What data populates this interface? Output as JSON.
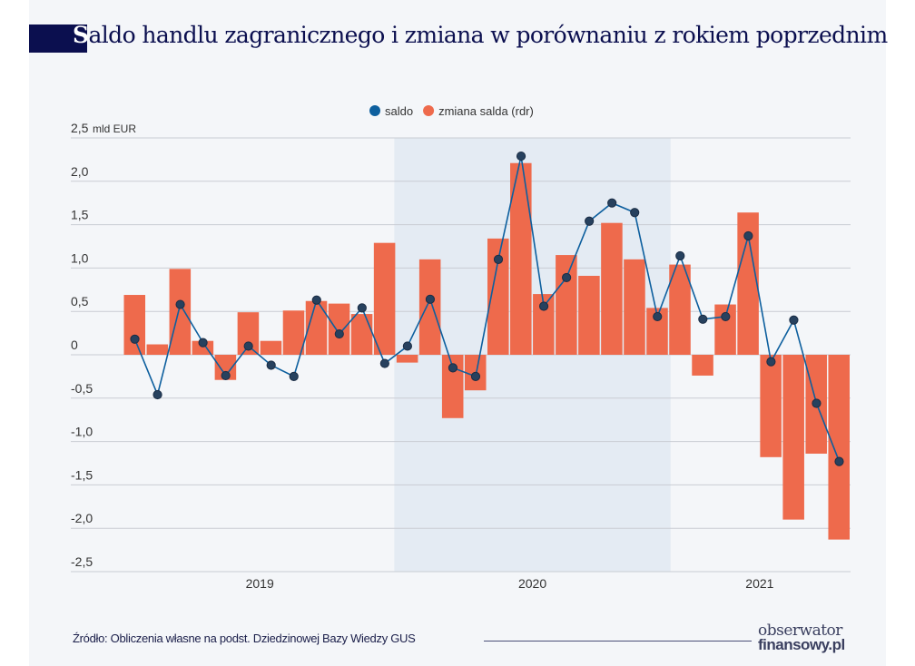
{
  "title": {
    "first_letter": "S",
    "rest": "aldo handlu zagranicznego i zmiana w porównaniu z rokiem poprzednim"
  },
  "source": "Źródło: Obliczenia własne na podst. Dziedzinowej Bazy Wiedzy GUS",
  "logo": {
    "line1": "obserwator",
    "line2": "finansowy.pl"
  },
  "chart_data": {
    "type": "bar+line",
    "ylabel": "mld EUR",
    "ylim": [
      -2.5,
      2.5
    ],
    "yticks": [
      "2,5",
      "2,0",
      "1,5",
      "1,0",
      "0,5",
      "0",
      "-0,5",
      "-1,0",
      "-1,5",
      "-2,0",
      "-2,5"
    ],
    "x_group_labels": [
      "2019",
      "2020",
      "2021"
    ],
    "shaded_period": "2020",
    "legend": {
      "position": "top-center",
      "items": [
        {
          "name": "saldo",
          "color": "#0d5f9e"
        },
        {
          "name": "zmiana salda (rdr)",
          "color": "#ee6a4c"
        }
      ]
    },
    "grid": true,
    "series": [
      {
        "name": "saldo",
        "type": "line",
        "color": "#0d5f9e",
        "values": [
          0.18,
          -0.46,
          0.58,
          0.14,
          -0.24,
          0.1,
          -0.12,
          -0.25,
          0.63,
          0.24,
          0.54,
          -0.1,
          0.1,
          0.64,
          -0.15,
          -0.25,
          1.1,
          2.29,
          0.56,
          0.89,
          1.54,
          1.75,
          1.64,
          0.44,
          1.14,
          0.41,
          0.44,
          1.37,
          -0.08,
          0.4,
          -0.56,
          -1.23
        ]
      },
      {
        "name": "zmiana salda (rdr)",
        "type": "bar",
        "color": "#ee6a4c",
        "values": [
          0.69,
          0.12,
          0.99,
          0.16,
          -0.29,
          0.49,
          0.16,
          0.51,
          0.62,
          0.59,
          0.47,
          1.29,
          -0.09,
          1.1,
          -0.73,
          -0.41,
          1.34,
          2.21,
          0.7,
          1.15,
          0.91,
          1.52,
          1.1,
          0.54,
          1.04,
          -0.24,
          0.58,
          1.64,
          -1.18,
          -1.9,
          -1.14,
          -2.13
        ]
      }
    ]
  }
}
